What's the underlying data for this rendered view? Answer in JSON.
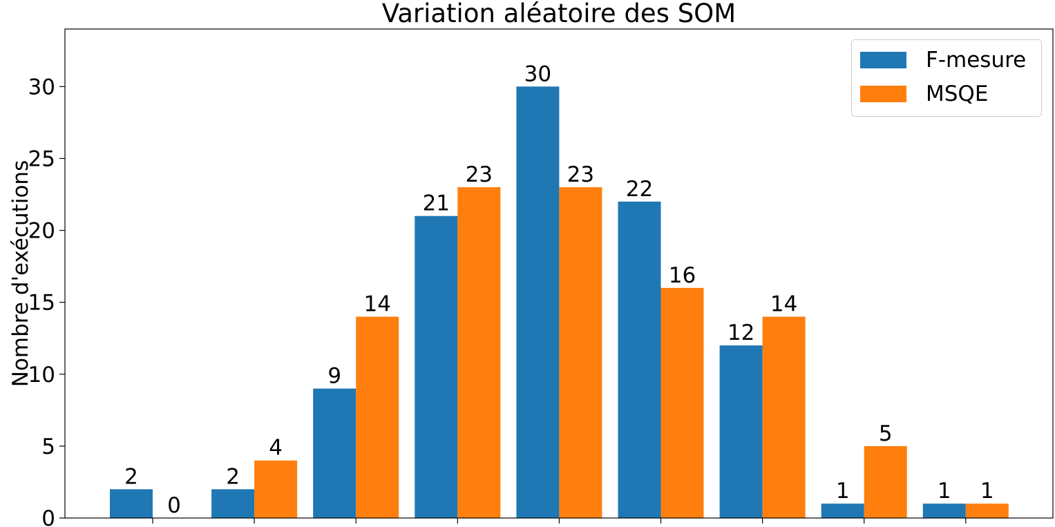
{
  "chart_data": {
    "type": "bar",
    "title": "Variation aléatoire des SOM",
    "xlabel": "",
    "ylabel": "Nombre d'exécutions",
    "ylim": [
      0,
      34
    ],
    "yticks": [
      0,
      5,
      10,
      15,
      20,
      25,
      30
    ],
    "categories": [
      "",
      "",
      "",
      "",
      "",
      "",
      "",
      "",
      ""
    ],
    "series": [
      {
        "name": "F-mesure",
        "color": "#1f77b4",
        "values": [
          2,
          2,
          9,
          21,
          30,
          22,
          12,
          1,
          1
        ]
      },
      {
        "name": "MSQE",
        "color": "#ff7f0e",
        "values": [
          0,
          4,
          14,
          23,
          23,
          16,
          14,
          5,
          1
        ]
      }
    ],
    "legend_position": "top-right",
    "grid": false
  }
}
